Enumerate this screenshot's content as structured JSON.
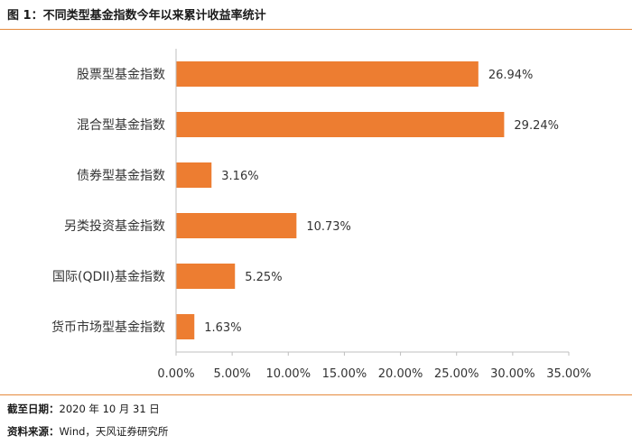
{
  "figure": {
    "title": "图 1：不同类型基金指数今年以来累计收益率统计",
    "note_date_label": "截至日期：",
    "note_date_value": "2020 年 10 月 31 日",
    "note_source_label": "资料来源：",
    "note_source_value": "Wind，天风证券研究所"
  },
  "chart_data": {
    "type": "bar",
    "orientation": "horizontal",
    "categories": [
      "股票型基金指数",
      "混合型基金指数",
      "债券型基金指数",
      "另类投资基金指数",
      "国际(QDII)基金指数",
      "货币市场型基金指数"
    ],
    "values": [
      26.94,
      29.24,
      3.16,
      10.73,
      5.25,
      1.63
    ],
    "value_labels": [
      "26.94%",
      "29.24%",
      "3.16%",
      "10.73%",
      "5.25%",
      "1.63%"
    ],
    "xlim": [
      0,
      35
    ],
    "xticks": [
      0,
      5,
      10,
      15,
      20,
      25,
      30,
      35
    ],
    "xtick_labels": [
      "0.00%",
      "5.00%",
      "10.00%",
      "15.00%",
      "20.00%",
      "25.00%",
      "30.00%",
      "35.00%"
    ],
    "bar_color": "#ed7d31",
    "grid": false,
    "legend": "none"
  }
}
